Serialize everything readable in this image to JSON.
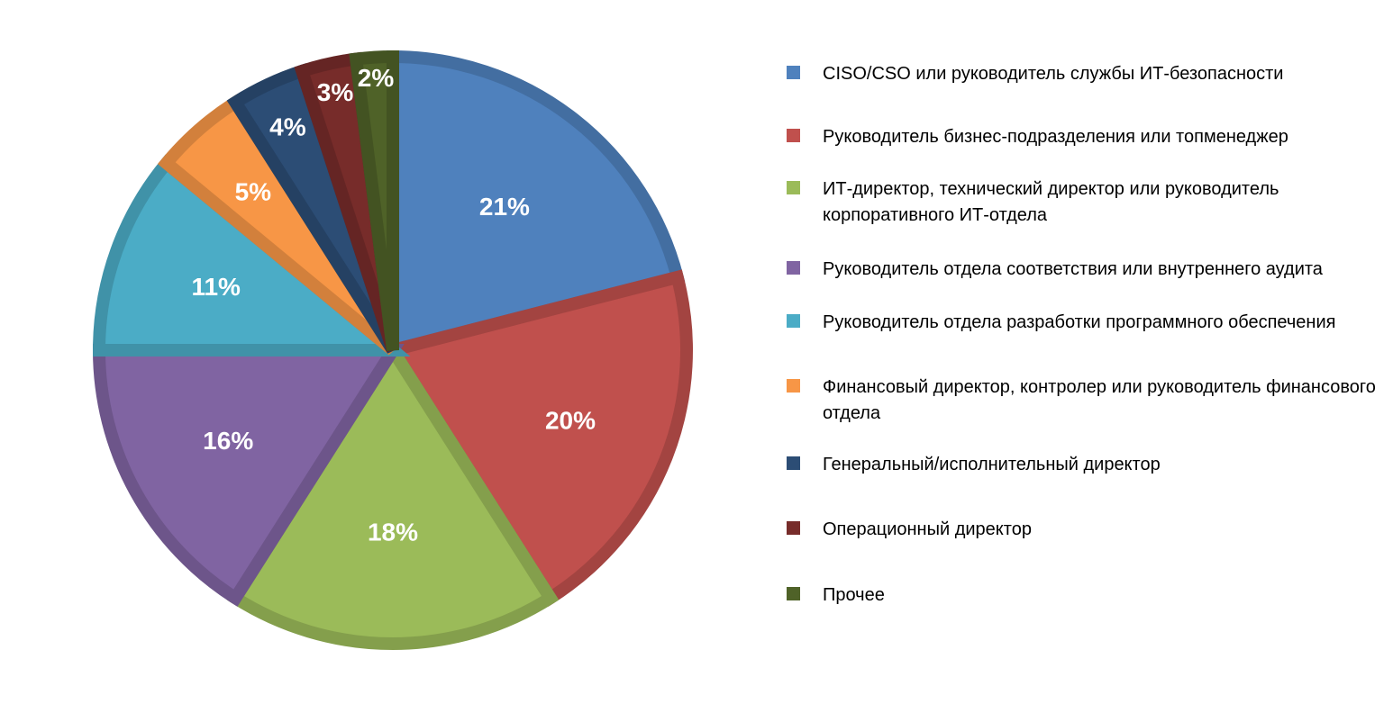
{
  "chart_data": {
    "type": "pie",
    "categories": [
      "CISO/CSO или руководитель службы ИТ-безопасности",
      "Руководитель бизнес-подразделения или топменеджер",
      "ИТ-директор, технический директор или руководитель корпоративного ИТ-отдела",
      "Руководитель отдела соответствия или внутреннего аудита",
      "Руководитель отдела разработки программного обеспечения",
      "Финансовый директор, контролер или руководитель финансового отдела",
      "Генеральный/исполнительный директор",
      "Операционный директор",
      "Прочее"
    ],
    "values": [
      21,
      20,
      18,
      16,
      11,
      5,
      4,
      3,
      2
    ],
    "data_labels": [
      "21%",
      "20%",
      "18%",
      "16%",
      "11%",
      "5%",
      "4%",
      "3%",
      "2%"
    ],
    "colors": [
      "#4f81bd",
      "#c0504d",
      "#9bbb59",
      "#8064a2",
      "#4bacc6",
      "#f79646",
      "#2c4d75",
      "#772c2a",
      "#4f6228"
    ],
    "legend_position": "right",
    "start_angle": "top",
    "direction": "clockwise"
  }
}
